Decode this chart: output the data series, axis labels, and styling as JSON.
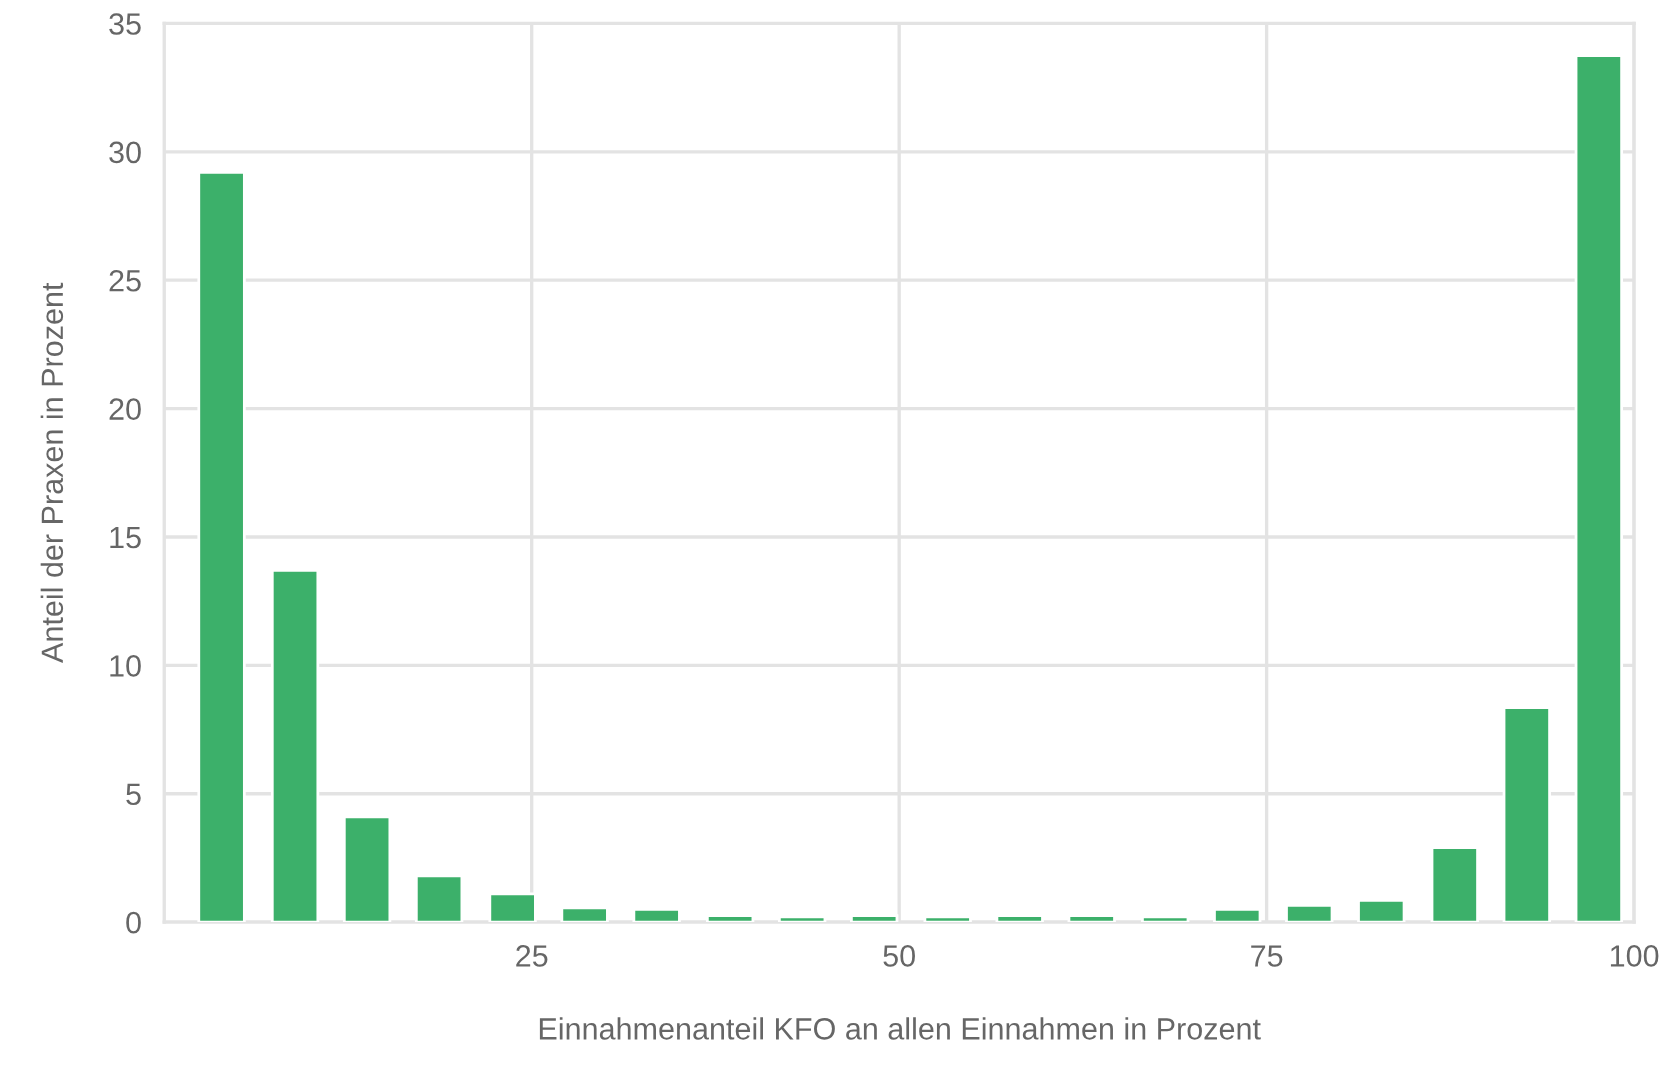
{
  "chart_data": {
    "type": "bar",
    "xlabel": "Einnahmenanteil KFO an allen Einnahmen in Prozent",
    "ylabel": "Anteil der Praxen in Prozent",
    "x": [
      3.9,
      8.9,
      13.8,
      18.7,
      23.7,
      28.6,
      33.5,
      38.5,
      43.4,
      48.3,
      53.3,
      58.2,
      63.1,
      68.1,
      73.0,
      77.9,
      82.8,
      87.8,
      92.7,
      97.6
    ],
    "values": [
      29.2,
      13.7,
      4.1,
      1.8,
      1.1,
      0.55,
      0.5,
      0.25,
      0.2,
      0.25,
      0.2,
      0.25,
      0.25,
      0.2,
      0.5,
      0.65,
      0.85,
      2.9,
      8.35,
      33.75
    ],
    "color": "#3cb06a",
    "xlim": [
      0,
      100
    ],
    "xticks": [
      25,
      50,
      75,
      100
    ],
    "ylim": [
      0,
      35
    ],
    "yticks": [
      0,
      5,
      10,
      15,
      20,
      25,
      30,
      35
    ],
    "grid": true
  }
}
